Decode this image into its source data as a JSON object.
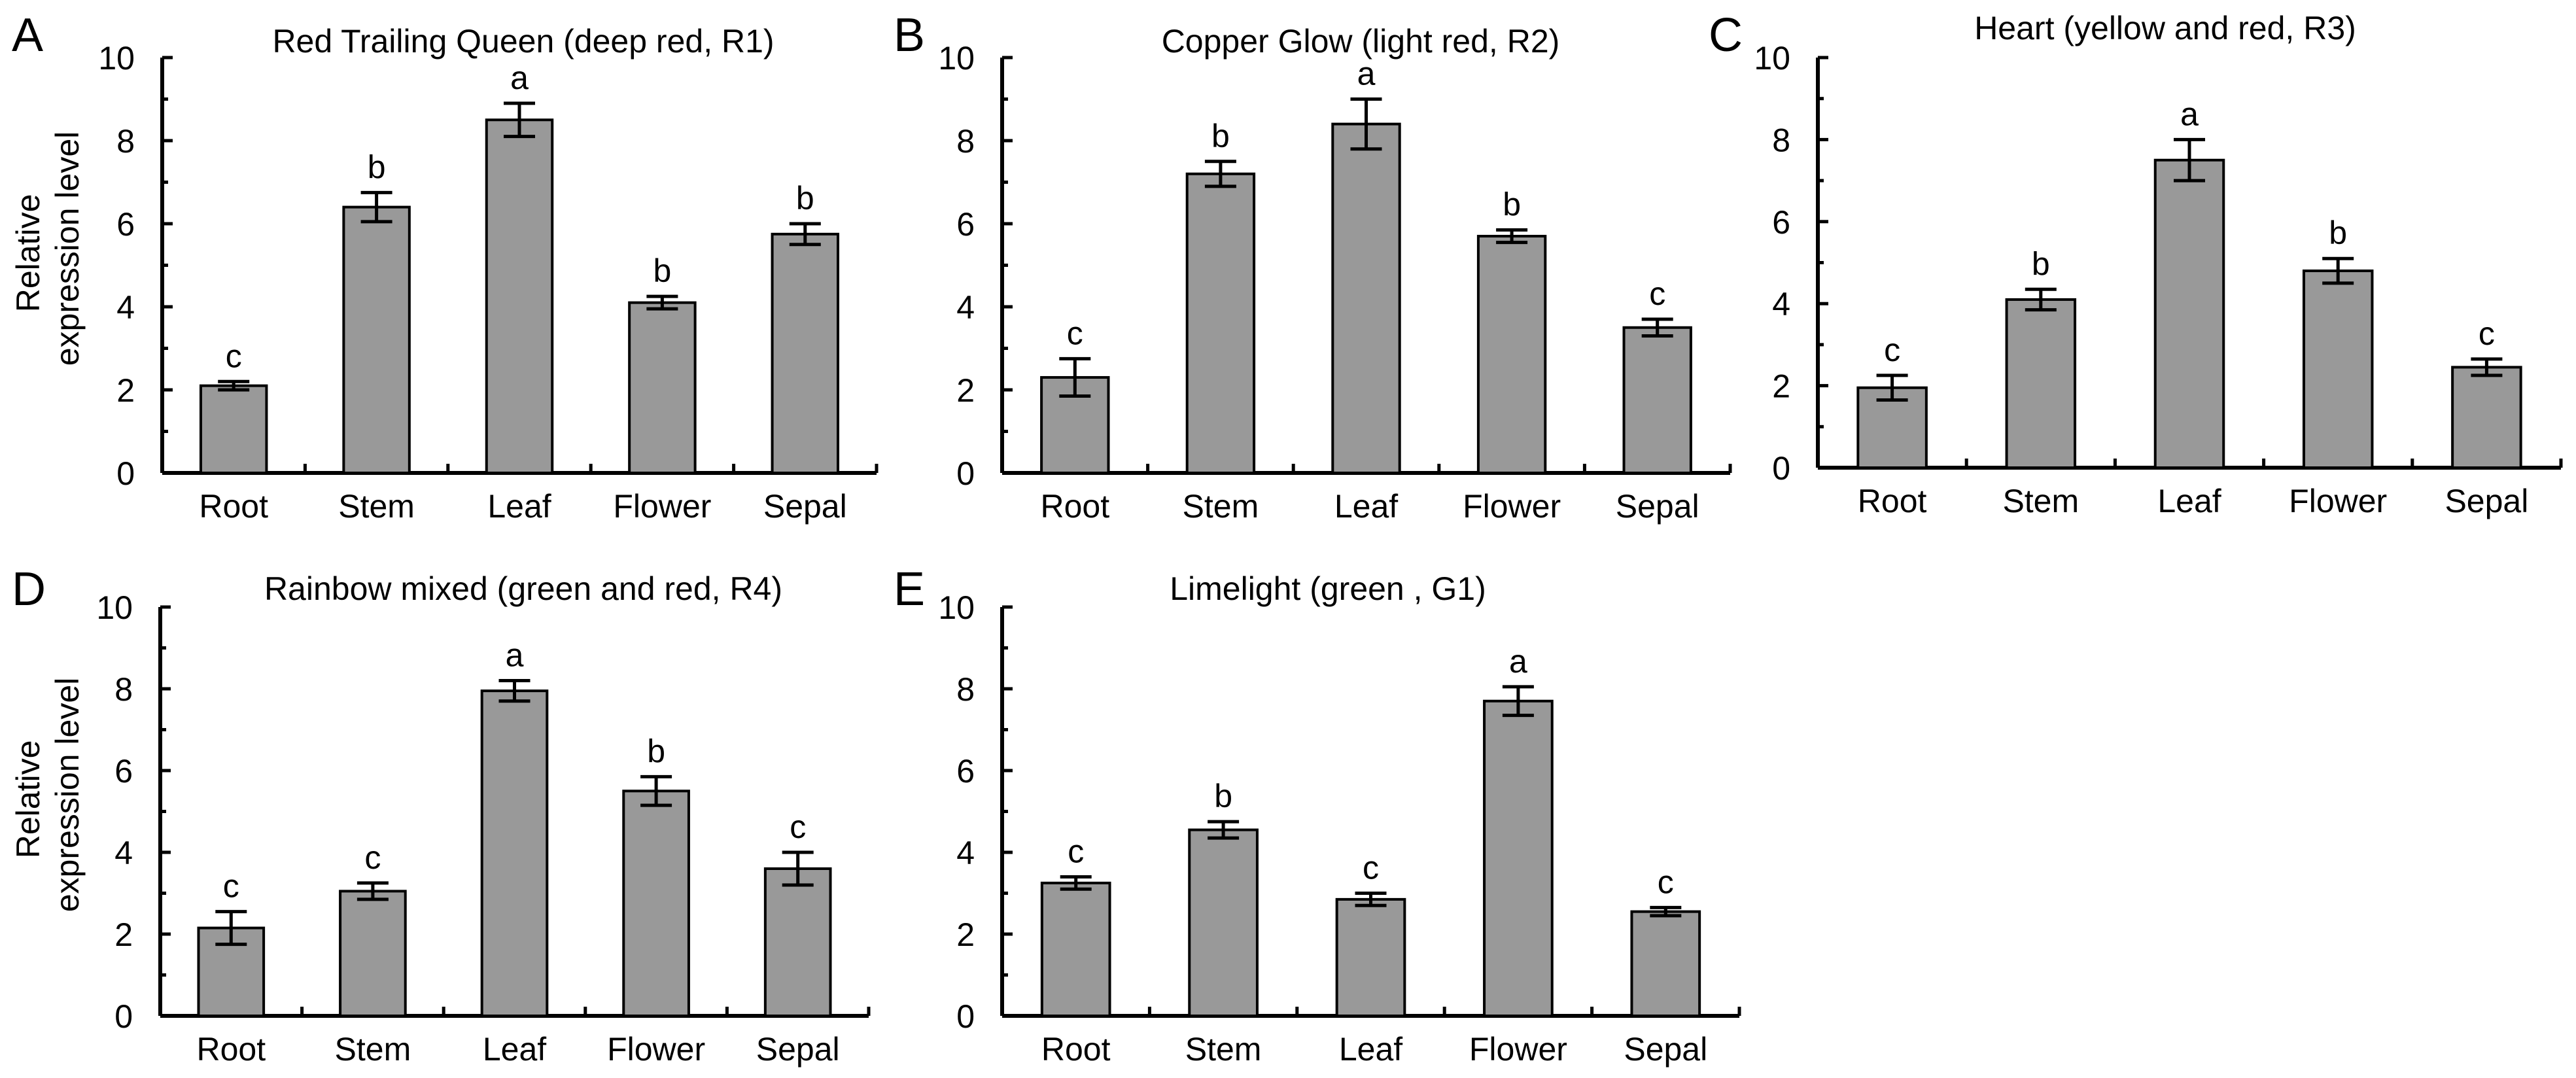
{
  "figure": {
    "ylabel_line1": "Relative",
    "ylabel_line2": "expression level"
  },
  "chart_data": [
    {
      "id": "A",
      "type": "bar",
      "panel": "A",
      "title": "Red Trailing Queen (deep red, R1)",
      "categories": [
        "Root",
        "Stem",
        "Leaf",
        "Flower",
        "Sepal"
      ],
      "values": [
        2.1,
        6.4,
        8.5,
        4.1,
        5.75
      ],
      "errors": [
        0.1,
        0.35,
        0.4,
        0.15,
        0.25
      ],
      "significance": [
        "c",
        "b",
        "a",
        "b",
        "b"
      ],
      "ylim": [
        0,
        10
      ],
      "yticks": [
        0,
        2,
        4,
        6,
        8,
        10
      ],
      "show_ylabel": true,
      "bar_color": "#999999"
    },
    {
      "id": "B",
      "type": "bar",
      "panel": "B",
      "title": "Copper Glow (light red, R2)",
      "categories": [
        "Root",
        "Stem",
        "Leaf",
        "Flower",
        "Sepal"
      ],
      "values": [
        2.3,
        7.2,
        8.4,
        5.7,
        3.5
      ],
      "errors": [
        0.45,
        0.3,
        0.6,
        0.15,
        0.2
      ],
      "significance": [
        "c",
        "b",
        "a",
        "b",
        "c"
      ],
      "ylim": [
        0,
        10
      ],
      "yticks": [
        0,
        2,
        4,
        6,
        8,
        10
      ],
      "show_ylabel": false,
      "bar_color": "#999999"
    },
    {
      "id": "C",
      "type": "bar",
      "panel": "C",
      "title": "Heart (yellow and red, R3)",
      "categories": [
        "Root",
        "Stem",
        "Leaf",
        "Flower",
        "Sepal"
      ],
      "values": [
        1.95,
        4.1,
        7.5,
        4.8,
        2.45
      ],
      "errors": [
        0.3,
        0.25,
        0.5,
        0.3,
        0.2
      ],
      "significance": [
        "c",
        "b",
        "a",
        "b",
        "c"
      ],
      "ylim": [
        0,
        10
      ],
      "yticks": [
        0,
        2,
        4,
        6,
        8,
        10
      ],
      "show_ylabel": false,
      "bar_color": "#999999"
    },
    {
      "id": "D",
      "type": "bar",
      "panel": "D",
      "title": "Rainbow mixed (green and red, R4)",
      "categories": [
        "Root",
        "Stem",
        "Leaf",
        "Flower",
        "Sepal"
      ],
      "values": [
        2.15,
        3.05,
        7.95,
        5.5,
        3.6
      ],
      "errors": [
        0.4,
        0.2,
        0.25,
        0.35,
        0.4
      ],
      "significance": [
        "c",
        "c",
        "a",
        "b",
        "c"
      ],
      "ylim": [
        0,
        10
      ],
      "yticks": [
        0,
        2,
        4,
        6,
        8,
        10
      ],
      "show_ylabel": true,
      "bar_color": "#999999"
    },
    {
      "id": "E",
      "type": "bar",
      "panel": "E",
      "title": "Limelight  (green , G1)",
      "categories": [
        "Root",
        "Stem",
        "Leaf",
        "Flower",
        "Sepal"
      ],
      "values": [
        3.25,
        4.55,
        2.85,
        7.7,
        2.55
      ],
      "errors": [
        0.15,
        0.2,
        0.15,
        0.35,
        0.1
      ],
      "significance": [
        "c",
        "b",
        "c",
        "a",
        "c"
      ],
      "ylim": [
        0,
        10
      ],
      "yticks": [
        0,
        2,
        4,
        6,
        8,
        10
      ],
      "show_ylabel": false,
      "bar_color": "#999999"
    }
  ]
}
